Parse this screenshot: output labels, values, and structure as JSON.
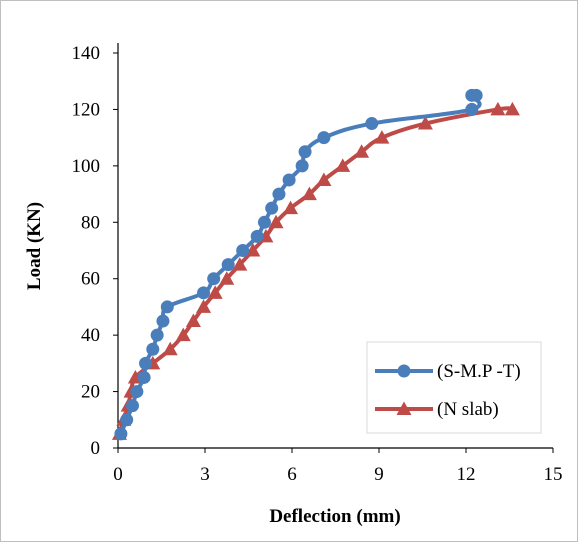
{
  "chart_data": {
    "type": "line",
    "title": "",
    "xlabel": "Deflection (mm)",
    "ylabel": "Load (KN)",
    "xlim": [
      0,
      15
    ],
    "ylim": [
      0,
      140
    ],
    "x_ticks": [
      "0",
      "3",
      "6",
      "9",
      "12",
      "15"
    ],
    "y_ticks": [
      "0",
      "20",
      "40",
      "60",
      "80",
      "100",
      "120",
      "140"
    ],
    "grid": false,
    "legend_position": "bottom-right",
    "series": [
      {
        "name": "(S-M.P -T)",
        "color": "#4a7ebb",
        "marker": "circle",
        "points": [
          [
            0.1,
            5
          ],
          [
            0.3,
            10
          ],
          [
            0.5,
            15
          ],
          [
            0.65,
            20
          ],
          [
            0.9,
            25
          ],
          [
            0.95,
            30
          ],
          [
            1.2,
            35
          ],
          [
            1.35,
            40
          ],
          [
            1.55,
            45
          ],
          [
            1.7,
            50
          ],
          [
            2.95,
            55
          ],
          [
            3.3,
            60
          ],
          [
            3.8,
            65
          ],
          [
            4.3,
            70
          ],
          [
            4.8,
            75
          ],
          [
            5.05,
            80
          ],
          [
            5.3,
            85
          ],
          [
            5.55,
            90
          ],
          [
            5.9,
            95
          ],
          [
            6.35,
            100
          ],
          [
            6.45,
            105
          ],
          [
            7.1,
            110
          ],
          [
            8.75,
            115
          ],
          [
            12.2,
            120
          ],
          [
            12.2,
            125
          ],
          [
            12.35,
            125
          ]
        ]
      },
      {
        "name": "(N slab)",
        "color": "#be4b48",
        "marker": "triangle",
        "points": [
          [
            0.05,
            5
          ],
          [
            0.2,
            10
          ],
          [
            0.35,
            15
          ],
          [
            0.45,
            20
          ],
          [
            0.6,
            25
          ],
          [
            1.2,
            30
          ],
          [
            1.8,
            35
          ],
          [
            2.25,
            40
          ],
          [
            2.6,
            45
          ],
          [
            2.95,
            50
          ],
          [
            3.35,
            55
          ],
          [
            3.75,
            60
          ],
          [
            4.2,
            65
          ],
          [
            4.65,
            70
          ],
          [
            5.1,
            75
          ],
          [
            5.45,
            80
          ],
          [
            5.95,
            85
          ],
          [
            6.6,
            90
          ],
          [
            7.1,
            95
          ],
          [
            7.75,
            100
          ],
          [
            8.4,
            105
          ],
          [
            9.1,
            110
          ],
          [
            10.6,
            115
          ],
          [
            13.1,
            120
          ],
          [
            13.6,
            120
          ]
        ]
      }
    ]
  }
}
